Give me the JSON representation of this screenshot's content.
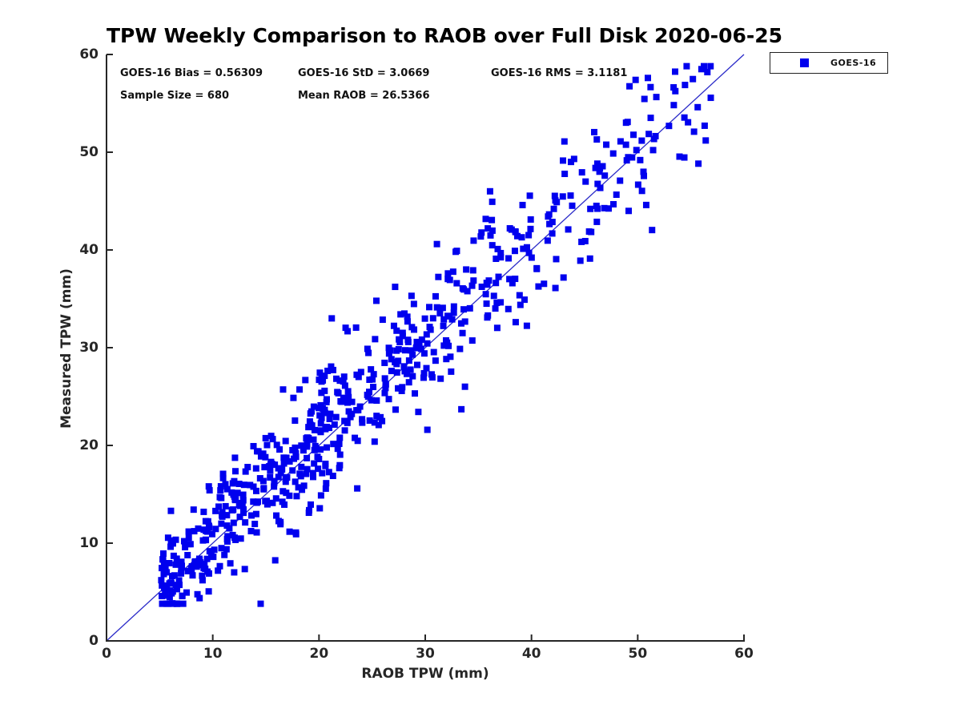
{
  "title": "TPW Weekly Comparison to RAOB over Full Disk 2020-06-25",
  "annotations": {
    "bias": "GOES-16 Bias = 0.56309",
    "std": "GOES-16 StD = 3.0669",
    "rms": "GOES-16 RMS = 3.1181",
    "sample_size": "Sample Size = 680",
    "mean_raob": "Mean RAOB = 26.5366"
  },
  "legend": {
    "position": "top-right-outside",
    "entries": [
      {
        "label": "GOES-16",
        "marker": "square",
        "marker_color": "#0000ee"
      }
    ]
  },
  "chart_data": {
    "type": "scatter",
    "title": "TPW Weekly Comparison to RAOB over Full Disk 2020-06-25",
    "xlabel": "RAOB TPW (mm)",
    "ylabel": "Measured TPW (mm)",
    "xlim": [
      0,
      60
    ],
    "ylim": [
      0,
      60
    ],
    "xticks": [
      0,
      10,
      20,
      30,
      40,
      50,
      60
    ],
    "yticks": [
      0,
      10,
      20,
      30,
      40,
      50,
      60
    ],
    "grid": false,
    "axis_color": "#262626",
    "identity_line": {
      "from": [
        0,
        0
      ],
      "to": [
        60,
        60
      ],
      "color": "#2a2ac8",
      "width": 1.3
    },
    "series": [
      {
        "name": "GOES-16",
        "marker": "square",
        "marker_color": "#0000ee",
        "marker_size_px": 8,
        "n_points": 680,
        "stats": {
          "bias": 0.56309,
          "std": 3.0669,
          "rms": 3.1181,
          "sample_size": 680,
          "mean_raob": 26.5366
        },
        "point_generation": {
          "seed": 1337,
          "n_random": 666,
          "x_bands": [
            [
              5.0,
              21.0,
              0.44
            ],
            [
              19.0,
              40.0,
              0.4
            ],
            [
              39.0,
              57.0,
              0.16
            ]
          ],
          "bias": 0.563,
          "std": 3.0,
          "y_min": 3.8,
          "y_max": 58.8
        },
        "explicit_points": [
          [
            21.2,
            33.0
          ],
          [
            49.8,
            57.4
          ],
          [
            56.0,
            58.5
          ],
          [
            43.1,
            51.1
          ],
          [
            31.1,
            40.6
          ],
          [
            23.6,
            15.6
          ],
          [
            33.4,
            23.7
          ],
          [
            30.2,
            21.6
          ],
          [
            56.4,
            51.2
          ],
          [
            55.3,
            52.1
          ],
          [
            36.1,
            46.0
          ],
          [
            44.6,
            38.9
          ],
          [
            50.8,
            44.6
          ],
          [
            25.4,
            34.8
          ]
        ]
      }
    ]
  }
}
